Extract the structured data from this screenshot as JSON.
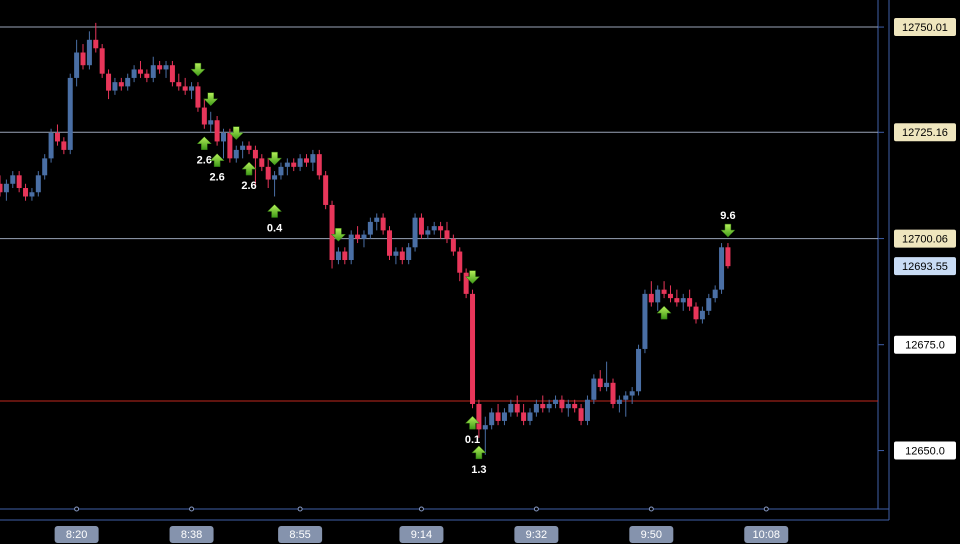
{
  "chart_data": {
    "type": "candlestick",
    "x": [
      488,
      489,
      490,
      491,
      492,
      493,
      494,
      495,
      496,
      497,
      498,
      499,
      500,
      501,
      502,
      503,
      504,
      505,
      506,
      507,
      508,
      509,
      510,
      511,
      512,
      513,
      514,
      515,
      516,
      517,
      518,
      519,
      520,
      521,
      522,
      523,
      524,
      525,
      526,
      527,
      528,
      529,
      530,
      531,
      532,
      533,
      534,
      535,
      536,
      537,
      538,
      539,
      540,
      541,
      542,
      543,
      544,
      545,
      546,
      547,
      548,
      549,
      550,
      551,
      552,
      553,
      554,
      555,
      556,
      557,
      558,
      559,
      560,
      561,
      562,
      563,
      564,
      565,
      566,
      567,
      568,
      569,
      570,
      571,
      572,
      573,
      574,
      575,
      576,
      577,
      578,
      579,
      580,
      581,
      582,
      583,
      584,
      585,
      586,
      587,
      588,
      589,
      590,
      591,
      592,
      593,
      594,
      595,
      596,
      597,
      598,
      599,
      600,
      601,
      602
    ],
    "ohlc": [
      [
        12713,
        12715,
        12710,
        12711
      ],
      [
        12711,
        12714,
        12709,
        12713
      ],
      [
        12713,
        12716,
        12712,
        12715
      ],
      [
        12715,
        12716,
        12711,
        12712
      ],
      [
        12712,
        12713,
        12709,
        12710
      ],
      [
        12710,
        12712,
        12709,
        12711
      ],
      [
        12711,
        12716,
        12710,
        12715
      ],
      [
        12715,
        12720,
        12714,
        12719
      ],
      [
        12719,
        12726,
        12718,
        12725
      ],
      [
        12725,
        12727,
        12722,
        12723
      ],
      [
        12723,
        12724,
        12720,
        12721
      ],
      [
        12721,
        12739,
        12720,
        12738
      ],
      [
        12738,
        12747,
        12736,
        12744
      ],
      [
        12744,
        12746,
        12740,
        12741
      ],
      [
        12741,
        12749,
        12740,
        12747
      ],
      [
        12747,
        12751,
        12744,
        12745
      ],
      [
        12745,
        12746,
        12738,
        12739
      ],
      [
        12739,
        12740,
        12733,
        12735
      ],
      [
        12735,
        12738,
        12734,
        12737
      ],
      [
        12737,
        12738,
        12735,
        12736
      ],
      [
        12736,
        12739,
        12735,
        12738
      ],
      [
        12738,
        12741,
        12737,
        12740
      ],
      [
        12740,
        12742,
        12738,
        12739
      ],
      [
        12739,
        12740,
        12737,
        12738
      ],
      [
        12738,
        12743,
        12737,
        12741
      ],
      [
        12741,
        12742,
        12739,
        12740
      ],
      [
        12740,
        12742,
        12738,
        12741
      ],
      [
        12741,
        12742,
        12736,
        12737
      ],
      [
        12737,
        12739,
        12735,
        12736
      ],
      [
        12736,
        12738,
        12734,
        12735
      ],
      [
        12735,
        12737,
        12733,
        12736
      ],
      [
        12736,
        12737,
        12730,
        12731
      ],
      [
        12731,
        12733,
        12726,
        12727
      ],
      [
        12727,
        12730,
        12725,
        12728
      ],
      [
        12728,
        12729,
        12722,
        12723
      ],
      [
        12723,
        12726,
        12719,
        12725
      ],
      [
        12725,
        12726,
        12718,
        12719
      ],
      [
        12719,
        12722,
        12718,
        12721
      ],
      [
        12721,
        12723,
        12719,
        12722
      ],
      [
        12722,
        12723,
        12720,
        12721
      ],
      [
        12721,
        12722,
        12712,
        12719
      ],
      [
        12719,
        12720,
        12716,
        12717
      ],
      [
        12717,
        12719,
        12712,
        12714
      ],
      [
        12714,
        12716,
        12710,
        12715
      ],
      [
        12715,
        12718,
        12714,
        12717
      ],
      [
        12717,
        12719,
        12715,
        12718
      ],
      [
        12718,
        12719,
        12716,
        12717
      ],
      [
        12717,
        12720,
        12716,
        12719
      ],
      [
        12719,
        12720,
        12717,
        12718
      ],
      [
        12718,
        12721,
        12716,
        12720
      ],
      [
        12720,
        12721,
        12714,
        12715
      ],
      [
        12715,
        12716,
        12707,
        12708
      ],
      [
        12708,
        12709,
        12693,
        12695
      ],
      [
        12695,
        12698,
        12694,
        12697
      ],
      [
        12697,
        12698,
        12694,
        12695
      ],
      [
        12695,
        12702,
        12694,
        12701
      ],
      [
        12701,
        12703,
        12699,
        12700
      ],
      [
        12700,
        12702,
        12698,
        12701
      ],
      [
        12701,
        12705,
        12700,
        12704
      ],
      [
        12704,
        12706,
        12702,
        12705
      ],
      [
        12705,
        12706,
        12701,
        12702
      ],
      [
        12702,
        12703,
        12695,
        12696
      ],
      [
        12696,
        12698,
        12694,
        12697
      ],
      [
        12697,
        12698,
        12694,
        12695
      ],
      [
        12695,
        12699,
        12694,
        12698
      ],
      [
        12698,
        12706,
        12697,
        12705
      ],
      [
        12705,
        12706,
        12700,
        12701
      ],
      [
        12701,
        12703,
        12700,
        12702
      ],
      [
        12702,
        12704,
        12701,
        12703
      ],
      [
        12703,
        12704,
        12700,
        12702
      ],
      [
        12702,
        12704,
        12699,
        12700
      ],
      [
        12700,
        12701,
        12696,
        12697
      ],
      [
        12697,
        12698,
        12690,
        12692
      ],
      [
        12692,
        12693,
        12686,
        12687
      ],
      [
        12687,
        12688,
        12660,
        12661
      ],
      [
        12661,
        12662,
        12653,
        12655
      ],
      [
        12655,
        12658,
        12649,
        12656
      ],
      [
        12656,
        12660,
        12655,
        12659
      ],
      [
        12659,
        12661,
        12656,
        12657
      ],
      [
        12657,
        12660,
        12656,
        12659
      ],
      [
        12659,
        12662,
        12658,
        12661
      ],
      [
        12661,
        12663,
        12658,
        12659
      ],
      [
        12659,
        12661,
        12656,
        12657
      ],
      [
        12657,
        12660,
        12656,
        12659
      ],
      [
        12659,
        12662,
        12658,
        12661
      ],
      [
        12661,
        12663,
        12659,
        12660
      ],
      [
        12660,
        12662,
        12659,
        12661
      ],
      [
        12661,
        12663,
        12660,
        12662
      ],
      [
        12662,
        12663,
        12659,
        12660
      ],
      [
        12660,
        12662,
        12658,
        12661
      ],
      [
        12661,
        12662,
        12659,
        12660
      ],
      [
        12660,
        12661,
        12656,
        12657
      ],
      [
        12657,
        12663,
        12656,
        12662
      ],
      [
        12662,
        12668,
        12661,
        12667
      ],
      [
        12667,
        12669,
        12664,
        12665
      ],
      [
        12665,
        12671,
        12664,
        12666
      ],
      [
        12666,
        12667,
        12660,
        12661
      ],
      [
        12661,
        12663,
        12659,
        12662
      ],
      [
        12662,
        12664,
        12658,
        12663
      ],
      [
        12663,
        12665,
        12661,
        12664
      ],
      [
        12664,
        12675,
        12663,
        12674
      ],
      [
        12674,
        12688,
        12673,
        12687
      ],
      [
        12687,
        12690,
        12684,
        12685
      ],
      [
        12685,
        12689,
        12683,
        12688
      ],
      [
        12688,
        12690,
        12686,
        12687
      ],
      [
        12687,
        12689,
        12685,
        12686
      ],
      [
        12686,
        12688,
        12684,
        12685
      ],
      [
        12685,
        12687,
        12683,
        12686
      ],
      [
        12686,
        12688,
        12683,
        12684
      ],
      [
        12684,
        12685,
        12680,
        12681
      ],
      [
        12681,
        12684,
        12680,
        12683
      ],
      [
        12683,
        12687,
        12682,
        12686
      ],
      [
        12686,
        12689,
        12685,
        12688
      ],
      [
        12688,
        12699,
        12687,
        12698
      ],
      [
        12698,
        12699,
        12693,
        12693.55
      ]
    ],
    "up_color": "#4a6fa5",
    "down_color": "#e8365a",
    "xlim": [
      488,
      625.5
    ],
    "ylim": [
      12636.2,
      12756.4
    ],
    "xticks": [
      {
        "value": 500,
        "label": "8:20"
      },
      {
        "value": 518,
        "label": "8:38"
      },
      {
        "value": 535,
        "label": "8:55"
      },
      {
        "value": 554,
        "label": "9:14"
      },
      {
        "value": 572,
        "label": "9:32"
      },
      {
        "value": 590,
        "label": "9:50"
      },
      {
        "value": 608,
        "label": "10:08"
      }
    ],
    "yticks": [
      {
        "value": 12675,
        "label": "12675.0"
      },
      {
        "value": 12650,
        "label": "12650.0"
      }
    ],
    "levels": [
      12750.01,
      12725.16,
      12700.06
    ],
    "hlines": [
      {
        "value": 12661.7,
        "color": "#c0281e"
      }
    ],
    "signals": [
      {
        "x": 519,
        "direction": "down"
      },
      {
        "x": 521,
        "direction": "down"
      },
      {
        "x": 525,
        "direction": "down"
      },
      {
        "x": 531,
        "direction": "down"
      },
      {
        "x": 541,
        "direction": "down"
      },
      {
        "x": 562,
        "direction": "down"
      },
      {
        "x": 602,
        "direction": "down",
        "label": "9.6"
      },
      {
        "x": 520,
        "direction": "up",
        "label": "2.6"
      },
      {
        "x": 522,
        "direction": "up",
        "label": "2.6"
      },
      {
        "x": 527,
        "direction": "up",
        "label": "2.6"
      },
      {
        "x": 531,
        "direction": "up",
        "label": "0.4"
      },
      {
        "x": 562,
        "direction": "up",
        "label": "0.1"
      },
      {
        "x": 563,
        "direction": "up",
        "label": "1.3"
      },
      {
        "x": 592,
        "direction": "up"
      }
    ]
  }
}
